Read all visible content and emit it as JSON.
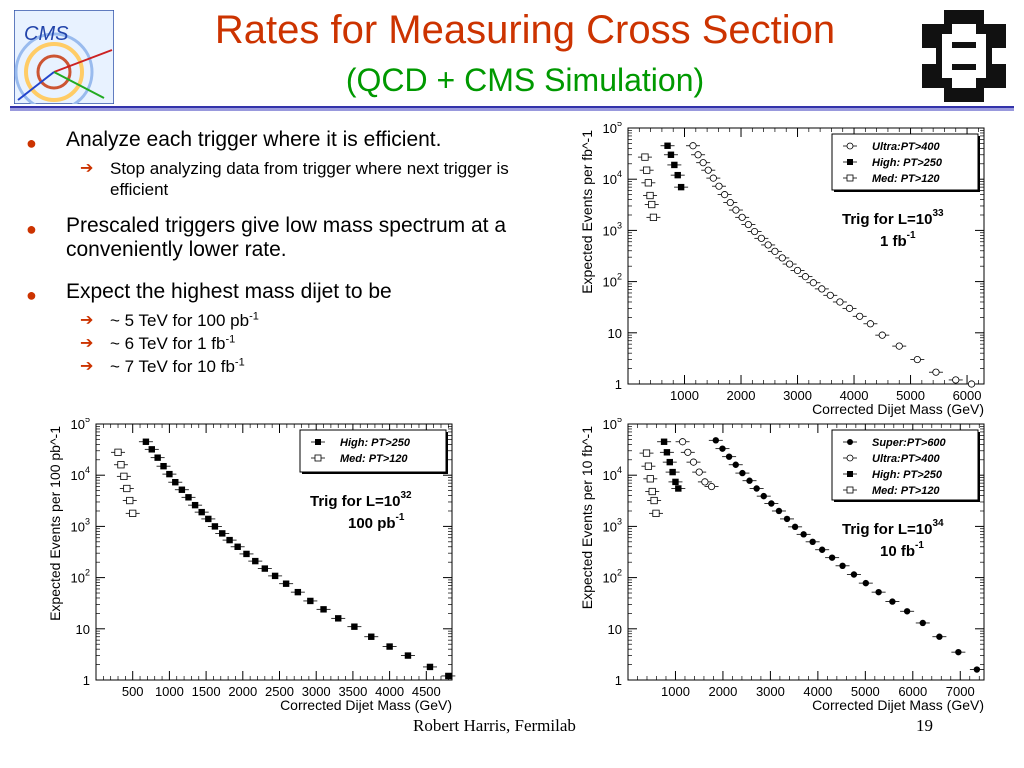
{
  "slide": {
    "title": "Rates for Measuring Cross Section",
    "subtitle": "(QCD + CMS Simulation)",
    "footer": "Robert Harris, Fermilab",
    "page_number": "19",
    "logo_text": "CMS"
  },
  "bullets": {
    "b1": "Analyze each trigger where it is efficient.",
    "b1_sub": "Stop analyzing data from trigger where next trigger is efficient",
    "b2": "Prescaled triggers give low mass spectrum at a conveniently lower rate.",
    "b3": "Expect the highest mass dijet to be",
    "b3_sub1": "~ 5 TeV for 100 pb",
    "b3_sub2": "~ 6 TeV for 1 fb",
    "b3_sub3": "~ 7 TeV for 10 fb",
    "sup": "-1"
  },
  "chart_data": [
    {
      "type": "scatter",
      "xlabel": "Corrected Dijet Mass (GeV)",
      "ylabel": "Expected Events per fb^-1",
      "ylog": true,
      "ylim": [
        1,
        100000
      ],
      "xlim": [
        0,
        6300
      ],
      "xticks": [
        1000,
        2000,
        3000,
        4000,
        5000,
        6000
      ],
      "yticks": [
        "1",
        "10",
        "10^2",
        "10^3",
        "10^4",
        "10^5"
      ],
      "annotation": {
        "line1": "Trig for L=10",
        "sup1": "33",
        "line2": "1 fb",
        "sup2": "-1"
      },
      "legend_position": "top-right",
      "series": [
        {
          "name": "Ultra:PT>400",
          "marker": "open-circle",
          "x": [
            1150,
            1240,
            1330,
            1420,
            1510,
            1610,
            1710,
            1810,
            1910,
            2020,
            2130,
            2240,
            2360,
            2480,
            2600,
            2730,
            2860,
            3000,
            3140,
            3280,
            3430,
            3580,
            3750,
            3920,
            4100,
            4290,
            4500,
            4800,
            5120,
            5450,
            5800,
            6080
          ],
          "y": [
            45000,
            30000,
            21000,
            15000,
            10500,
            7300,
            5000,
            3500,
            2500,
            1800,
            1300,
            950,
            700,
            520,
            390,
            290,
            220,
            165,
            125,
            95,
            72,
            54,
            40,
            30,
            21,
            15,
            9,
            5.5,
            3,
            1.7,
            1.2,
            1
          ]
        },
        {
          "name": "High: PT>250",
          "marker": "filled-square",
          "x": [
            700,
            760,
            820,
            880,
            940
          ],
          "y": [
            45000,
            30000,
            19000,
            12000,
            7000
          ]
        },
        {
          "name": "Med:  PT>120",
          "marker": "open-square",
          "x": [
            300,
            330,
            360,
            390,
            420,
            450
          ],
          "y": [
            27000,
            15000,
            8500,
            4800,
            3200,
            1800
          ]
        }
      ]
    },
    {
      "type": "scatter",
      "xlabel": "Corrected Dijet Mass (GeV)",
      "ylabel": "Expected Events per 100 pb^-1",
      "ylog": true,
      "ylim": [
        1,
        100000
      ],
      "xlim": [
        0,
        4850
      ],
      "xticks": [
        500,
        1000,
        1500,
        2000,
        2500,
        3000,
        3500,
        4000,
        4500
      ],
      "yticks": [
        "1",
        "10",
        "10^2",
        "10^3",
        "10^4",
        "10^5"
      ],
      "annotation": {
        "line1": "Trig for L=10",
        "sup1": "32",
        "line2": "100 pb",
        "sup2": "-1"
      },
      "legend_position": "top-right",
      "series": [
        {
          "name": "High: PT>250",
          "marker": "filled-square",
          "x": [
            680,
            760,
            840,
            920,
            1000,
            1080,
            1170,
            1260,
            1350,
            1440,
            1530,
            1620,
            1720,
            1820,
            1930,
            2050,
            2170,
            2300,
            2440,
            2590,
            2750,
            2920,
            3100,
            3300,
            3520,
            3750,
            4000,
            4250,
            4550,
            4800
          ],
          "y": [
            45000,
            32000,
            22000,
            15000,
            10500,
            7300,
            5200,
            3700,
            2600,
            1900,
            1400,
            1000,
            730,
            540,
            400,
            290,
            210,
            150,
            108,
            76,
            52,
            35,
            24,
            16,
            11,
            7,
            4.5,
            3,
            1.8,
            1.2
          ]
        },
        {
          "name": "Med:  PT>120",
          "marker": "open-square",
          "x": [
            300,
            340,
            380,
            420,
            460,
            500
          ],
          "y": [
            28000,
            16000,
            9500,
            5500,
            3200,
            1800
          ]
        }
      ]
    },
    {
      "type": "scatter",
      "xlabel": "Corrected Dijet Mass (GeV)",
      "ylabel": "Expected Events per 10 fb^-1",
      "ylog": true,
      "ylim": [
        1,
        100000
      ],
      "xlim": [
        0,
        7500
      ],
      "xticks": [
        1000,
        2000,
        3000,
        4000,
        5000,
        6000,
        7000
      ],
      "yticks": [
        "1",
        "10",
        "10^2",
        "10^3",
        "10^4",
        "10^5"
      ],
      "annotation": {
        "line1": "Trig for L=10",
        "sup1": "34",
        "line2": "10 fb",
        "sup2": "-1"
      },
      "legend_position": "top-right",
      "series": [
        {
          "name": "Super:PT>600",
          "marker": "filled-circle",
          "x": [
            1850,
            1990,
            2130,
            2270,
            2410,
            2560,
            2710,
            2860,
            3020,
            3180,
            3350,
            3520,
            3700,
            3890,
            4090,
            4300,
            4520,
            4760,
            5010,
            5280,
            5570,
            5880,
            6210,
            6560,
            6960,
            7350
          ],
          "y": [
            48000,
            33000,
            23000,
            16000,
            11000,
            7800,
            5500,
            3900,
            2800,
            2000,
            1400,
            980,
            700,
            500,
            350,
            245,
            170,
            115,
            78,
            52,
            34,
            22,
            13,
            7,
            3.5,
            1.6
          ]
        },
        {
          "name": "Ultra:PT>400",
          "marker": "open-circle",
          "x": [
            1150,
            1260,
            1380,
            1500,
            1620,
            1760
          ],
          "y": [
            45000,
            28000,
            18000,
            11500,
            7400,
            6000
          ]
        },
        {
          "name": "High: PT>250",
          "marker": "filled-square",
          "x": [
            760,
            820,
            880,
            940,
            1000,
            1060
          ],
          "y": [
            45000,
            28000,
            18000,
            11500,
            7400,
            5500
          ]
        },
        {
          "name": "Med:  PT>120",
          "marker": "open-square",
          "x": [
            390,
            430,
            470,
            510,
            550,
            590
          ],
          "y": [
            27000,
            15000,
            8500,
            4800,
            3200,
            1800
          ]
        }
      ]
    }
  ]
}
